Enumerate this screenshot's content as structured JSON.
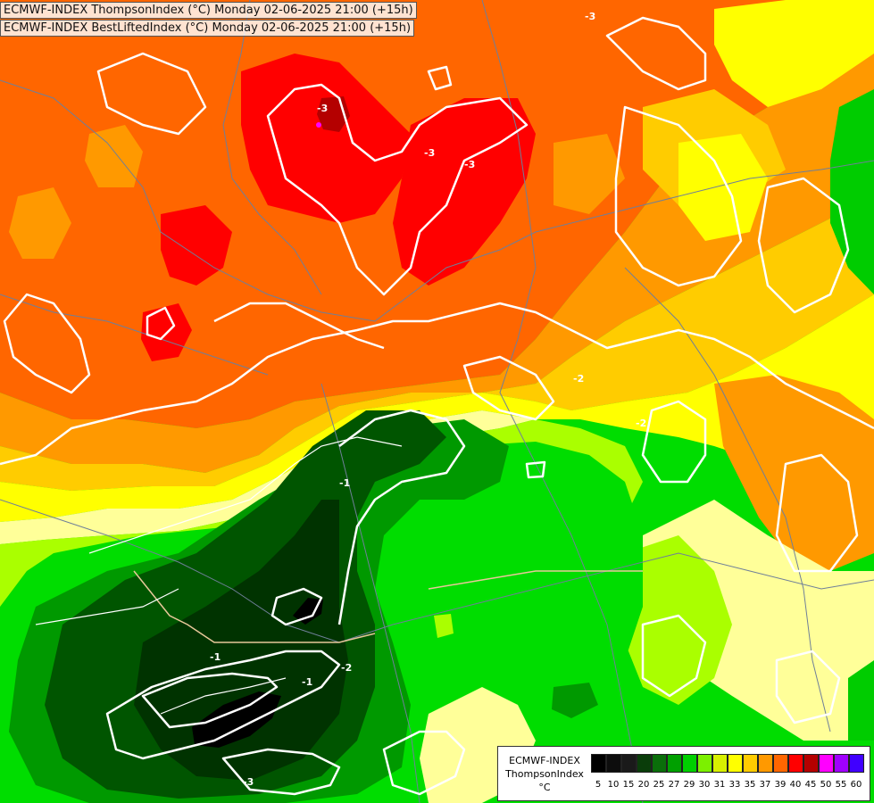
{
  "header": {
    "line1": "ECMWF-INDEX ThompsonIndex (°C) Monday 02-06-2025 21:00 (+15h)",
    "line2": "ECMWF-INDEX BestLiftedIndex (°C) Monday 02-06-2025 21:00 (+15h)"
  },
  "legend": {
    "line1": "ECMWF-INDEX",
    "line2": "ThompsonIndex",
    "line3": "°C",
    "labels": [
      "5",
      "10",
      "15",
      "20",
      "25",
      "27",
      "29",
      "30",
      "31",
      "33",
      "35",
      "37",
      "39",
      "40",
      "45",
      "50",
      "55",
      "60"
    ],
    "colors": [
      "#000000",
      "#0d0d0d",
      "#1a1a1a",
      "#0a3d0a",
      "#0a6e0a",
      "#00a000",
      "#00d000",
      "#7cf000",
      "#d8f000",
      "#ffff00",
      "#ffcc00",
      "#ff9900",
      "#ff6600",
      "#ff0000",
      "#b40000",
      "#ff00ff",
      "#a000ff",
      "#4000ff"
    ]
  },
  "map": {
    "contour_labels": [
      "-3",
      "-3",
      "-3",
      "-3",
      "-2",
      "-2",
      "-1",
      "-1",
      "-2",
      "-1",
      "-3"
    ]
  },
  "colors": {
    "red": "#ff0000",
    "darkred": "#b40000",
    "orange_red": "#ff6600",
    "orange": "#ff9900",
    "yellow_orange": "#ffcc00",
    "yellow": "#ffff00",
    "pale_yellow": "#ffff99",
    "light_green": "#aaff00",
    "green": "#00dd00",
    "mid_green": "#009900",
    "dark_green": "#005500",
    "very_dark_green": "#003300",
    "black": "#000000"
  }
}
